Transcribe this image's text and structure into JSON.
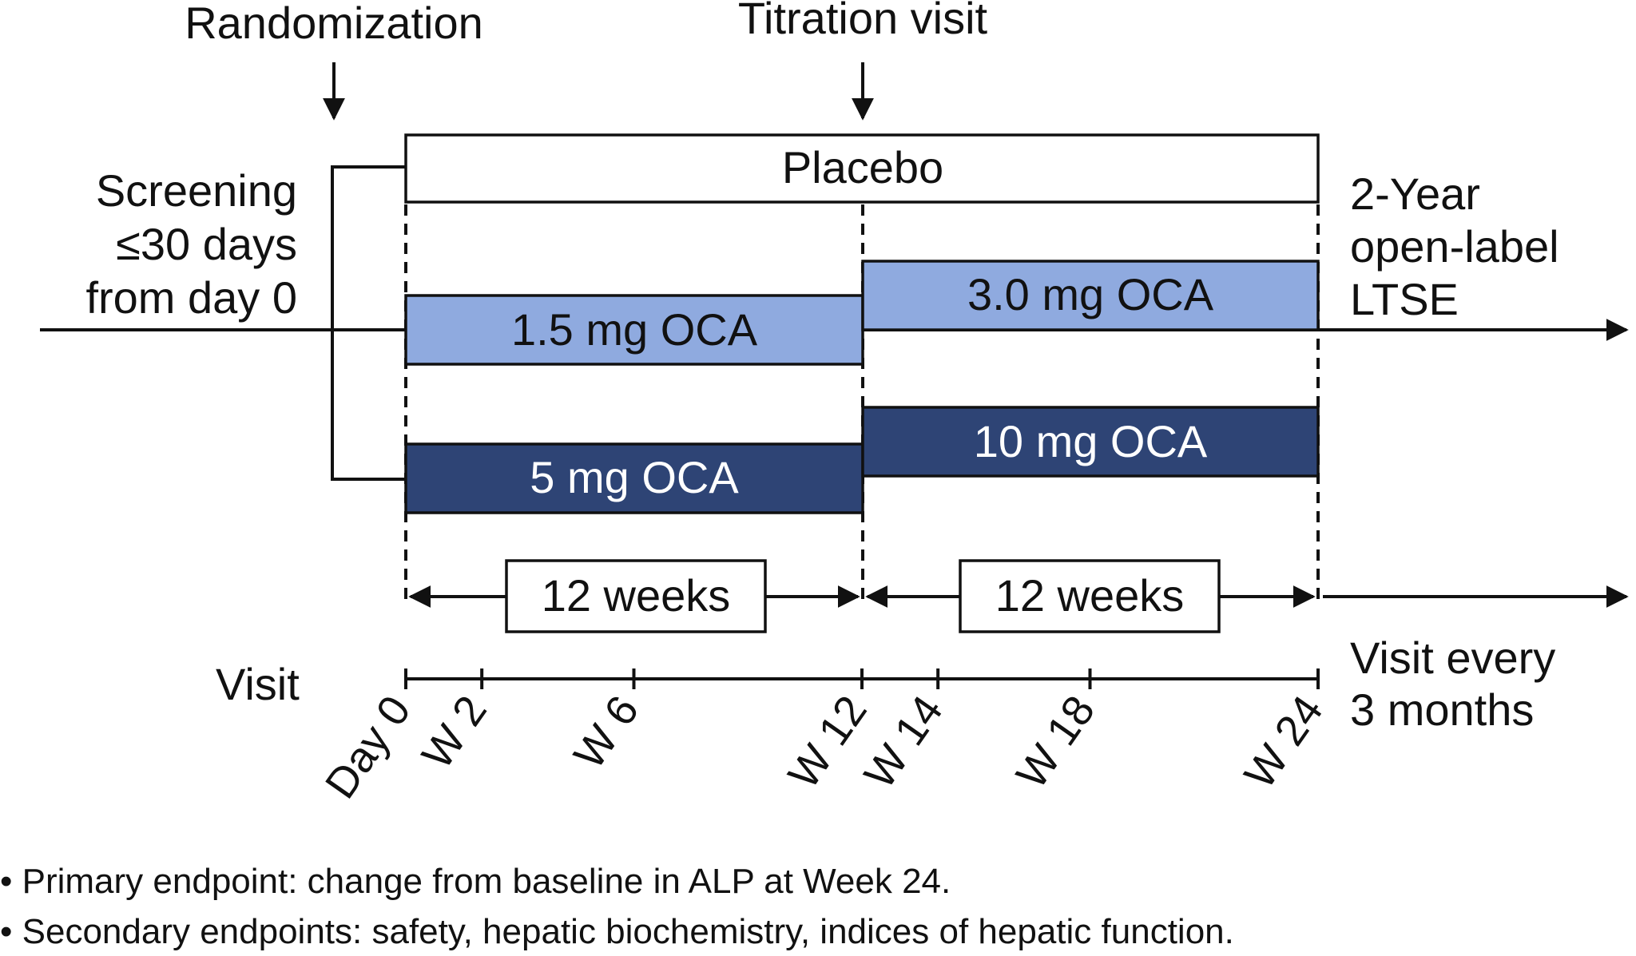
{
  "events": {
    "randomization": "Randomization",
    "titration": "Titration visit"
  },
  "screening": [
    "Screening",
    "≤30 days",
    "from day 0"
  ],
  "open_label": [
    "2-Year",
    "open-label",
    "LTSE"
  ],
  "arms": {
    "placebo": "Placebo",
    "low_phase1": "1.5 mg OCA",
    "low_phase2": "3.0 mg OCA",
    "high_phase1": "5 mg OCA",
    "high_phase2": "10 mg OCA"
  },
  "periods": [
    "12 weeks",
    "12 weeks"
  ],
  "visit": {
    "label": "Visit",
    "after_label": [
      "Visit every",
      "3 months"
    ],
    "ticks": [
      "Day 0",
      "W 2",
      "W 6",
      "W 12",
      "W 14",
      "W 18",
      "W 24"
    ]
  },
  "notes": [
    "• Primary endpoint: change from baseline in ALP at Week 24.",
    "• Secondary endpoints: safety, hepatic biochemistry, indices of hepatic function."
  ],
  "colors": {
    "placebo": "#ffffff",
    "low_dose": "#8faadf",
    "high_dose": "#2e4475",
    "line": "#111111"
  }
}
